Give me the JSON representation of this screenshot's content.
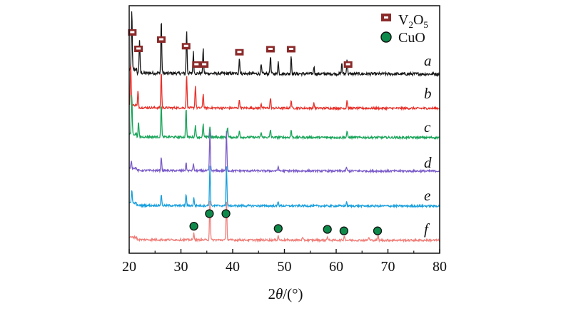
{
  "chart_data": {
    "type": "line",
    "title": "",
    "xlabel_prefix": "2",
    "xlabel_var": "θ",
    "xlabel_unit": "/(°)",
    "ylabel": "",
    "xlim": [
      20,
      80
    ],
    "x_ticks": [
      "20",
      "30",
      "40",
      "50",
      "60",
      "70",
      "80"
    ],
    "grid": false,
    "legend_position": "top-right",
    "legend": [
      {
        "name": "V2O5",
        "base": "V",
        "sub1": "2",
        "mid": "O",
        "sub2": "5",
        "marker": "square",
        "color": "#8b2a2a"
      },
      {
        "name": "CuO",
        "marker": "circle",
        "color": "#0e8a4a"
      }
    ],
    "series": [
      {
        "name": "a",
        "color": "#1a1a1a",
        "peaks": [
          [
            20.5,
            1.0
          ],
          [
            22.0,
            0.55
          ],
          [
            26.2,
            0.9
          ],
          [
            31.1,
            0.7
          ],
          [
            32.4,
            0.35
          ],
          [
            34.3,
            0.4
          ],
          [
            41.3,
            0.25
          ],
          [
            45.5,
            0.15
          ],
          [
            47.3,
            0.3
          ],
          [
            48.8,
            0.2
          ],
          [
            51.3,
            0.3
          ],
          [
            55.7,
            0.12
          ],
          [
            61.1,
            0.18
          ],
          [
            62.1,
            0.25
          ]
        ],
        "markers": [
          {
            "type": "V2O5",
            "x": [
              20.6,
              21.8,
              26.2,
              31.0,
              33.0,
              34.5,
              41.3,
              47.3,
              51.3,
              62.3
            ]
          }
        ]
      },
      {
        "name": "b",
        "color": "#e8312a",
        "peaks": [
          [
            20.3,
            1.0
          ],
          [
            21.7,
            0.4
          ],
          [
            26.2,
            0.9
          ],
          [
            31.1,
            0.8
          ],
          [
            32.8,
            0.55
          ],
          [
            34.3,
            0.35
          ],
          [
            41.3,
            0.2
          ],
          [
            45.5,
            0.12
          ],
          [
            47.3,
            0.25
          ],
          [
            51.3,
            0.2
          ],
          [
            55.7,
            0.12
          ],
          [
            62.1,
            0.2
          ]
        ],
        "markers": []
      },
      {
        "name": "c",
        "color": "#1aa55a",
        "peaks": [
          [
            20.5,
            0.95
          ],
          [
            21.8,
            0.35
          ],
          [
            26.2,
            0.8
          ],
          [
            31.0,
            0.7
          ],
          [
            32.8,
            0.3
          ],
          [
            34.3,
            0.3
          ],
          [
            35.6,
            0.25
          ],
          [
            39.0,
            0.25
          ],
          [
            41.3,
            0.15
          ],
          [
            45.5,
            0.12
          ],
          [
            47.3,
            0.18
          ],
          [
            51.3,
            0.18
          ],
          [
            62.1,
            0.15
          ]
        ],
        "markers": []
      },
      {
        "name": "d",
        "color": "#7b5cc9",
        "peaks": [
          [
            20.4,
            0.2
          ],
          [
            26.2,
            0.35
          ],
          [
            31.0,
            0.2
          ],
          [
            32.4,
            0.18
          ],
          [
            35.6,
            1.0
          ],
          [
            38.8,
            1.0
          ],
          [
            48.8,
            0.12
          ],
          [
            62.0,
            0.1
          ]
        ],
        "markers": []
      },
      {
        "name": "e",
        "color": "#1aa0dd",
        "peaks": [
          [
            20.5,
            0.35
          ],
          [
            26.2,
            0.3
          ],
          [
            31.0,
            0.3
          ],
          [
            32.5,
            0.2
          ],
          [
            35.6,
            1.0
          ],
          [
            38.8,
            1.0
          ],
          [
            48.8,
            0.12
          ],
          [
            62.0,
            0.1
          ]
        ],
        "markers": []
      },
      {
        "name": "f",
        "color": "#f07f7a",
        "peaks": [
          [
            32.5,
            0.18
          ],
          [
            35.6,
            1.0
          ],
          [
            38.8,
            1.0
          ],
          [
            48.8,
            0.12
          ],
          [
            53.5,
            0.06
          ],
          [
            58.3,
            0.1
          ],
          [
            61.6,
            0.12
          ],
          [
            66.3,
            0.08
          ],
          [
            68.1,
            0.12
          ]
        ],
        "markers": [
          {
            "type": "CuO",
            "x": [
              32.5,
              35.5,
              38.7,
              48.8,
              58.3,
              61.5,
              68.0
            ]
          }
        ]
      }
    ]
  }
}
